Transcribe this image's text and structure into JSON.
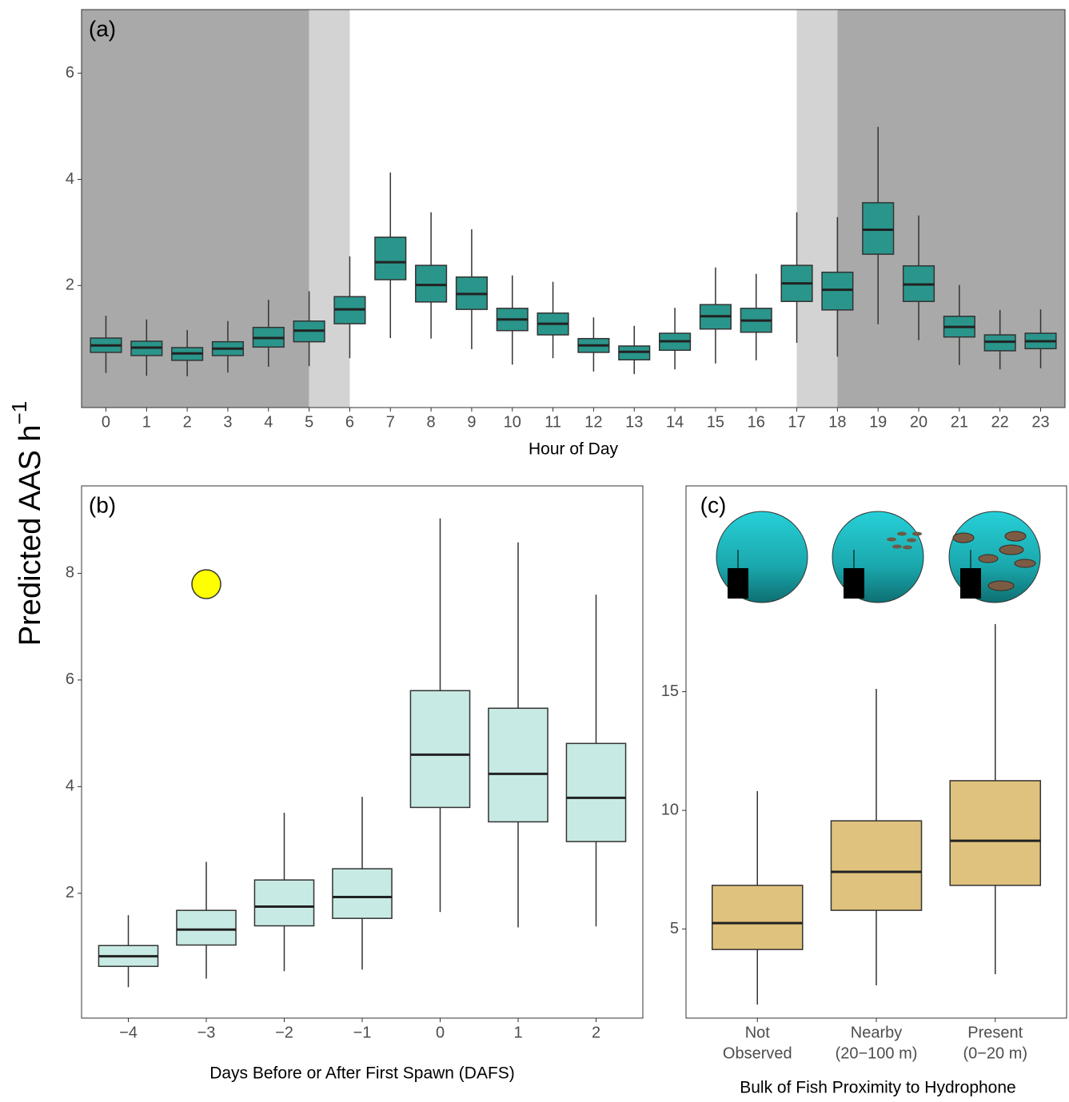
{
  "ylabel": {
    "text": "Predicted AAS h",
    "superscript": "−1"
  },
  "chart_data": [
    {
      "type": "box",
      "label": "(a)",
      "xlabel": "Hour of Day",
      "color": "#2a958b",
      "x": [
        0,
        1,
        2,
        3,
        4,
        5,
        6,
        7,
        8,
        9,
        10,
        11,
        12,
        13,
        14,
        15,
        16,
        17,
        18,
        19,
        20,
        21,
        22,
        23
      ],
      "xlim": [
        -0.6,
        23.6
      ],
      "xticks": [
        0,
        1,
        2,
        3,
        4,
        5,
        6,
        7,
        8,
        9,
        10,
        11,
        12,
        13,
        14,
        15,
        16,
        17,
        18,
        19,
        20,
        21,
        22,
        23
      ],
      "ylim": [
        -0.3,
        7.2
      ],
      "yticks": [
        2,
        4,
        6
      ],
      "bands": [
        {
          "from": -0.6,
          "to": 5,
          "color": "#a9a9a9"
        },
        {
          "from": 5,
          "to": 6,
          "color": "#d3d3d3"
        },
        {
          "from": 17,
          "to": 18,
          "color": "#d3d3d3"
        },
        {
          "from": 18,
          "to": 23.6,
          "color": "#a9a9a9"
        }
      ],
      "whisker_low": [
        0.35,
        0.3,
        0.29,
        0.36,
        0.47,
        0.48,
        0.63,
        1.01,
        1.0,
        0.8,
        0.51,
        0.63,
        0.38,
        0.33,
        0.42,
        0.53,
        0.59,
        0.92,
        0.66,
        1.27,
        0.97,
        0.5,
        0.42,
        0.44
      ],
      "q1": [
        0.74,
        0.68,
        0.59,
        0.68,
        0.84,
        0.94,
        1.28,
        2.11,
        1.69,
        1.55,
        1.15,
        1.07,
        0.74,
        0.6,
        0.78,
        1.18,
        1.12,
        1.7,
        1.54,
        2.59,
        1.7,
        1.03,
        0.77,
        0.81
      ],
      "median": [
        0.87,
        0.83,
        0.72,
        0.81,
        1.01,
        1.15,
        1.55,
        2.44,
        2.01,
        1.84,
        1.36,
        1.28,
        0.87,
        0.75,
        0.95,
        1.42,
        1.34,
        2.04,
        1.92,
        3.05,
        2.02,
        1.22,
        0.94,
        0.95
      ],
      "q3": [
        1.01,
        0.95,
        0.83,
        0.94,
        1.21,
        1.33,
        1.79,
        2.91,
        2.38,
        2.16,
        1.57,
        1.48,
        1.0,
        0.86,
        1.1,
        1.64,
        1.57,
        2.38,
        2.25,
        3.56,
        2.37,
        1.42,
        1.07,
        1.1
      ],
      "whisker_high": [
        1.43,
        1.36,
        1.16,
        1.33,
        1.73,
        1.89,
        2.55,
        4.13,
        3.38,
        3.06,
        2.19,
        2.07,
        1.4,
        1.24,
        1.58,
        2.34,
        2.22,
        3.38,
        3.29,
        4.99,
        3.32,
        2.01,
        1.54,
        1.55
      ]
    },
    {
      "type": "box",
      "label": "(b)",
      "xlabel": "Days Before or After First Spawn (DAFS)",
      "color": "#c8eae4",
      "categories": [
        "−4",
        "−3",
        "−2",
        "−1",
        "0",
        "1",
        "2"
      ],
      "ylim": [
        -0.34,
        9.64
      ],
      "yticks": [
        2,
        4,
        6,
        8
      ],
      "whisker_low": [
        0.24,
        0.4,
        0.54,
        0.57,
        1.65,
        1.36,
        1.38
      ],
      "q1": [
        0.63,
        1.03,
        1.39,
        1.53,
        3.61,
        3.34,
        2.97
      ],
      "median": [
        0.82,
        1.32,
        1.75,
        1.93,
        4.6,
        4.24,
        3.79
      ],
      "q3": [
        1.02,
        1.68,
        2.25,
        2.46,
        5.8,
        5.47,
        4.81
      ],
      "whisker_high": [
        1.59,
        2.59,
        3.51,
        3.81,
        9.03,
        8.58,
        7.6
      ]
    },
    {
      "type": "box",
      "label": "(c)",
      "xlabel": "Bulk of Fish Proximity to Hydrophone",
      "color": "#dfc27d",
      "categories": [
        [
          "Not",
          "Observed"
        ],
        [
          "Nearby",
          "(20−100 m)"
        ],
        [
          "Present",
          "(0−20 m)"
        ]
      ],
      "ylim": [
        1.25,
        23.67
      ],
      "yticks": [
        5,
        10,
        15
      ],
      "whisker_low": [
        1.82,
        2.63,
        3.1
      ],
      "q1": [
        4.14,
        5.79,
        6.84
      ],
      "median": [
        5.25,
        7.41,
        8.72
      ],
      "q3": [
        6.84,
        9.56,
        11.25
      ],
      "whisker_high": [
        10.81,
        15.12,
        17.85
      ]
    }
  ]
}
